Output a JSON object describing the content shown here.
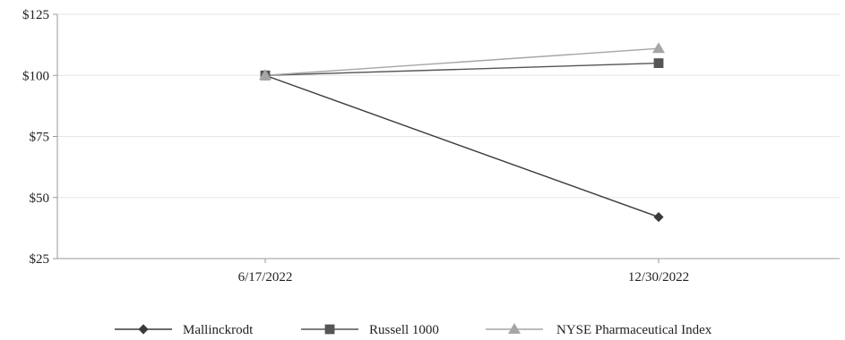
{
  "chart_data": {
    "type": "line",
    "title": "",
    "xlabel": "",
    "ylabel": "",
    "categories": [
      "6/17/2022",
      "12/30/2022"
    ],
    "ylim": [
      25,
      125
    ],
    "yticks": [
      25,
      50,
      75,
      100,
      125
    ],
    "ytick_labels": [
      "$25",
      "$50",
      "$75",
      "$100",
      "$125"
    ],
    "grid": true,
    "legend_position": "bottom",
    "series": [
      {
        "name": "Mallinckrodt",
        "values": [
          100,
          42
        ],
        "color": "#3a3a3a",
        "marker": "diamond"
      },
      {
        "name": "Russell 1000",
        "values": [
          100,
          105
        ],
        "color": "#555555",
        "marker": "square"
      },
      {
        "name": "NYSE Pharmaceutical Index",
        "values": [
          100,
          111
        ],
        "color": "#a6a6a6",
        "marker": "triangle"
      }
    ]
  }
}
